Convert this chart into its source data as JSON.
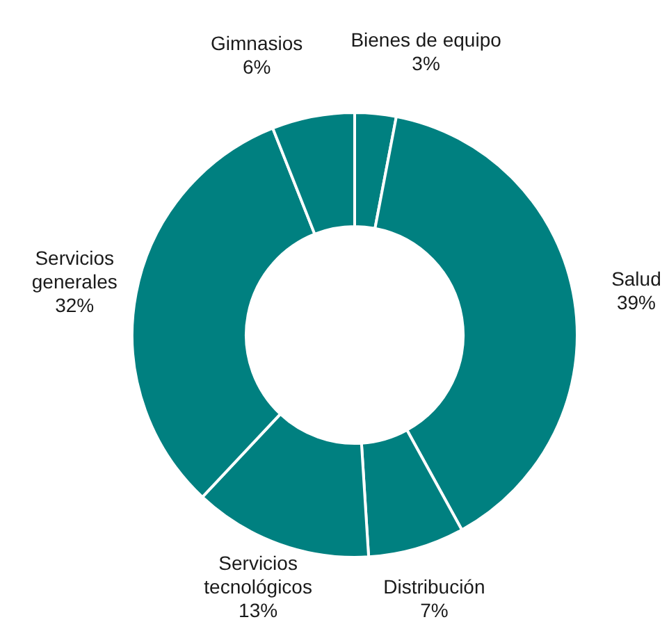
{
  "chart_data": {
    "type": "donut",
    "categories": [
      "Bienes de equipo",
      "Salud",
      "Distribución",
      "Servicios tecnológicos",
      "Servicios generales",
      "Gimnasios"
    ],
    "values": [
      3,
      39,
      7,
      13,
      32,
      6
    ],
    "colors": [
      "#008080",
      "#008080",
      "#008080",
      "#008080",
      "#008080",
      "#008080"
    ],
    "value_labels": [
      "3%",
      "39%",
      "7%",
      "13%",
      "32%",
      "6%"
    ]
  }
}
